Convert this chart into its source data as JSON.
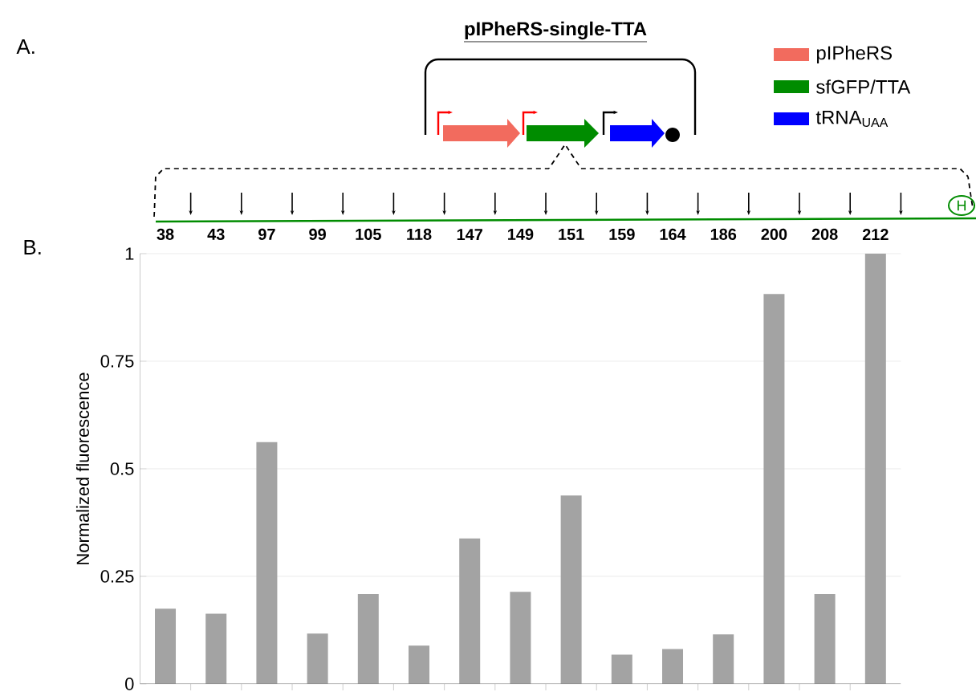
{
  "chart_data": {
    "type": "bar",
    "title": "pIPheRS-single-TTA",
    "ylabel": "Normalized fluorescence",
    "categories": [
      "38",
      "43",
      "97",
      "99",
      "105",
      "118",
      "147",
      "149",
      "151",
      "159",
      "164",
      "186",
      "200",
      "208",
      "212"
    ],
    "values": [
      0.175,
      0.163,
      0.562,
      0.117,
      0.209,
      0.089,
      0.338,
      0.214,
      0.438,
      0.068,
      0.081,
      0.115,
      0.906,
      0.209,
      1.0
    ],
    "color": "#a3a3a3",
    "ylim": [
      0,
      1
    ],
    "yticks": [
      0,
      0.25,
      0.5,
      0.75,
      1
    ],
    "grid": "y",
    "annotations": [
      "A.",
      "B.",
      "pIPheRS",
      "sfGFP/TTA",
      "tRNA$_{UAA}$",
      "H"
    ]
  }
}
